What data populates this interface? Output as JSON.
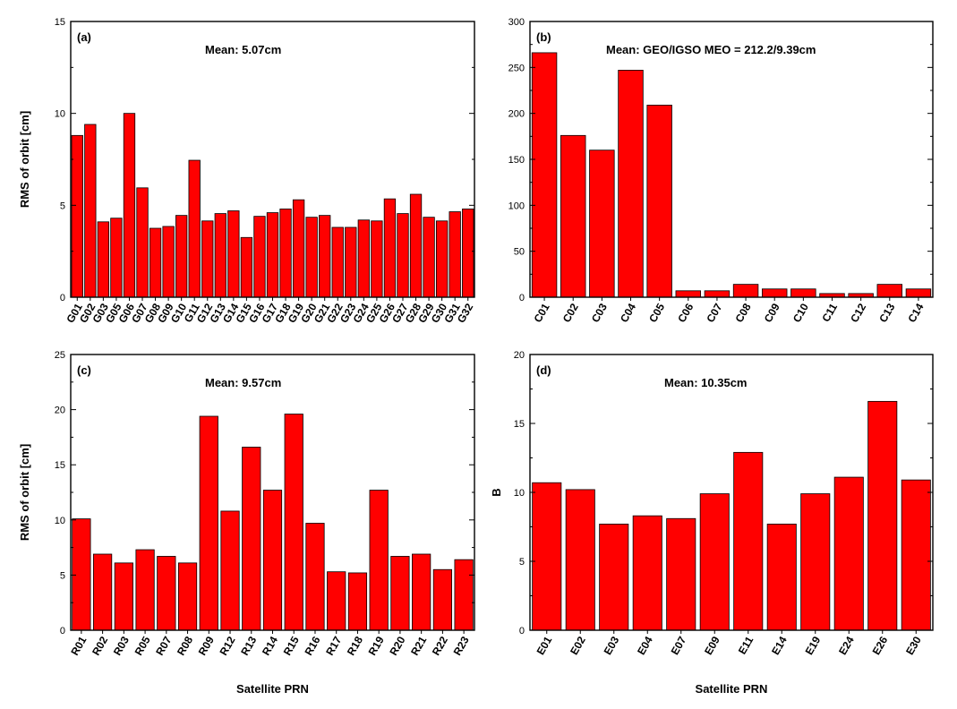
{
  "colors": {
    "bar": "#ff0000",
    "bar_stroke": "#000000"
  },
  "chart_data": [
    {
      "type": "bar",
      "panel_label": "(a)",
      "title": "Mean: 5.07cm",
      "ylabel": "RMS of orbit [cm]",
      "xlabel": "",
      "ylim": [
        0,
        15
      ],
      "yticks": [
        0,
        5,
        10,
        15
      ],
      "categories": [
        "G01",
        "G02",
        "G03",
        "G05",
        "G06",
        "G07",
        "G08",
        "G09",
        "G10",
        "G11",
        "G12",
        "G13",
        "G14",
        "G15",
        "G16",
        "G17",
        "G18",
        "G19",
        "G20",
        "G21",
        "G22",
        "G23",
        "G24",
        "G25",
        "G26",
        "G27",
        "G28",
        "G29",
        "G30",
        "G31",
        "G32"
      ],
      "values": [
        8.8,
        9.4,
        4.1,
        4.3,
        10.0,
        5.95,
        3.75,
        3.85,
        4.45,
        7.45,
        4.15,
        4.55,
        4.7,
        3.25,
        4.4,
        4.6,
        4.8,
        5.3,
        4.35,
        4.45,
        3.8,
        3.8,
        4.2,
        4.15,
        5.35,
        4.55,
        5.6,
        4.35,
        4.15,
        4.65,
        4.8
      ]
    },
    {
      "type": "bar",
      "panel_label": "(b)",
      "title": "Mean: GEO/IGSO MEO = 212.2/9.39cm",
      "ylabel": "",
      "xlabel": "",
      "ylim": [
        0,
        300
      ],
      "yticks": [
        0,
        50,
        100,
        150,
        200,
        250,
        300
      ],
      "categories": [
        "C01",
        "C02",
        "C03",
        "C04",
        "C05",
        "C06",
        "C07",
        "C08",
        "C09",
        "C10",
        "C11",
        "C12",
        "C13",
        "C14"
      ],
      "values": [
        266,
        176,
        160,
        247,
        209,
        7,
        7,
        14,
        9,
        9,
        4,
        4,
        14,
        9
      ]
    },
    {
      "type": "bar",
      "panel_label": "(c)",
      "title": "Mean: 9.57cm",
      "ylabel": "RMS of orbit [cm]",
      "xlabel": "Satellite PRN",
      "ylim": [
        0,
        25
      ],
      "yticks": [
        0,
        5,
        10,
        15,
        20,
        25
      ],
      "categories": [
        "R01",
        "R02",
        "R03",
        "R05",
        "R07",
        "R08",
        "R09",
        "R12",
        "R13",
        "R14",
        "R15",
        "R16",
        "R17",
        "R18",
        "R19",
        "R20",
        "R21",
        "R22",
        "R23"
      ],
      "values": [
        10.1,
        6.9,
        6.1,
        7.3,
        6.7,
        6.1,
        19.4,
        10.8,
        16.6,
        12.7,
        19.6,
        9.7,
        5.3,
        5.2,
        12.7,
        6.7,
        6.9,
        5.5,
        6.4
      ]
    },
    {
      "type": "bar",
      "panel_label": "(d)",
      "title": "Mean: 10.35cm",
      "ylabel": "B",
      "xlabel": "Satellite PRN",
      "ylim": [
        0,
        20
      ],
      "yticks": [
        0,
        5,
        10,
        15,
        20
      ],
      "categories": [
        "E01",
        "E02",
        "E03",
        "E04",
        "E07",
        "E09",
        "E11",
        "E14",
        "E19",
        "E24",
        "E26",
        "E30"
      ],
      "values": [
        10.7,
        10.2,
        7.7,
        8.3,
        8.1,
        9.9,
        12.9,
        7.7,
        9.9,
        11.1,
        16.6,
        10.9
      ]
    }
  ]
}
